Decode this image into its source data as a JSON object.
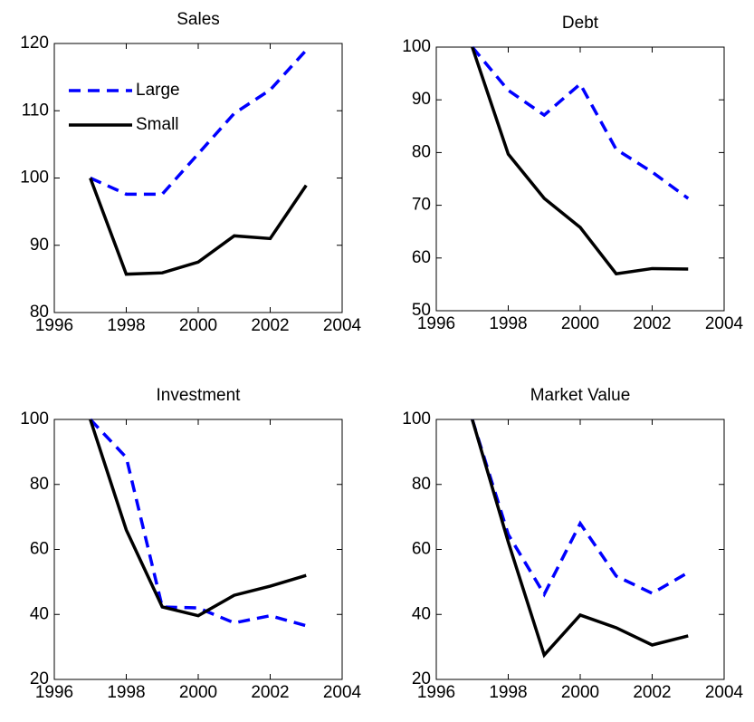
{
  "chart_data": [
    {
      "type": "line",
      "title": "Sales",
      "x": [
        1997,
        1998,
        1999,
        2000,
        2001,
        2002,
        2003
      ],
      "series": [
        {
          "name": "Large",
          "color": "#0000ff",
          "linestyle": "dashed",
          "values": [
            100,
            97.6,
            97.6,
            103.6,
            109.6,
            113.1,
            119
          ]
        },
        {
          "name": "Small",
          "color": "#000000",
          "linestyle": "solid",
          "values": [
            100,
            85.7,
            85.9,
            87.5,
            91.4,
            91.0,
            98.9
          ]
        }
      ],
      "xlim": [
        1996,
        2004
      ],
      "xticks": [
        1996,
        1998,
        2000,
        2002,
        2004
      ],
      "ylim": [
        80,
        120
      ],
      "yticks": [
        80,
        90,
        100,
        110,
        120
      ],
      "legend": "upper left"
    },
    {
      "type": "line",
      "title": "Debt",
      "x": [
        1997,
        1998,
        1999,
        2000,
        2001,
        2002,
        2003
      ],
      "series": [
        {
          "name": "Large",
          "color": "#0000ff",
          "linestyle": "dashed",
          "values": [
            100,
            91.8,
            87.1,
            93,
            80.6,
            76.3,
            71.3
          ]
        },
        {
          "name": "Small",
          "color": "#000000",
          "linestyle": "solid",
          "values": [
            100,
            79.7,
            71.3,
            65.8,
            57,
            58,
            57.9
          ]
        }
      ],
      "xlim": [
        1996,
        2004
      ],
      "xticks": [
        1996,
        1998,
        2000,
        2002,
        2004
      ],
      "ylim": [
        50,
        100
      ],
      "yticks": [
        50,
        60,
        70,
        80,
        90,
        100
      ]
    },
    {
      "type": "line",
      "title": "Investment",
      "x": [
        1997,
        1998,
        1999,
        2000,
        2001,
        2002,
        2003
      ],
      "series": [
        {
          "name": "Large",
          "color": "#0000ff",
          "linestyle": "dashed",
          "values": [
            100,
            88.3,
            42.3,
            42,
            37.4,
            39.6,
            36.5
          ]
        },
        {
          "name": "Small",
          "color": "#000000",
          "linestyle": "solid",
          "values": [
            100,
            66,
            42.3,
            39.6,
            45.9,
            48.7,
            52
          ]
        }
      ],
      "xlim": [
        1996,
        2004
      ],
      "xticks": [
        1996,
        1998,
        2000,
        2002,
        2004
      ],
      "ylim": [
        20,
        100
      ],
      "yticks": [
        20,
        40,
        60,
        80,
        100
      ]
    },
    {
      "type": "line",
      "title": "Market Value",
      "x": [
        1997,
        1998,
        1999,
        2000,
        2001,
        2002,
        2003
      ],
      "series": [
        {
          "name": "Large",
          "color": "#0000ff",
          "linestyle": "dashed",
          "values": [
            100,
            64.6,
            46.2,
            68,
            51.8,
            46.5,
            52.9
          ]
        },
        {
          "name": "Small",
          "color": "#000000",
          "linestyle": "solid",
          "values": [
            100,
            62.3,
            27.5,
            39.8,
            35.9,
            30.6,
            33.4
          ]
        }
      ],
      "xlim": [
        1996,
        2004
      ],
      "xticks": [
        1996,
        1998,
        2000,
        2002,
        2004
      ],
      "ylim": [
        20,
        100
      ],
      "yticks": [
        20,
        40,
        60,
        80,
        100
      ]
    }
  ]
}
